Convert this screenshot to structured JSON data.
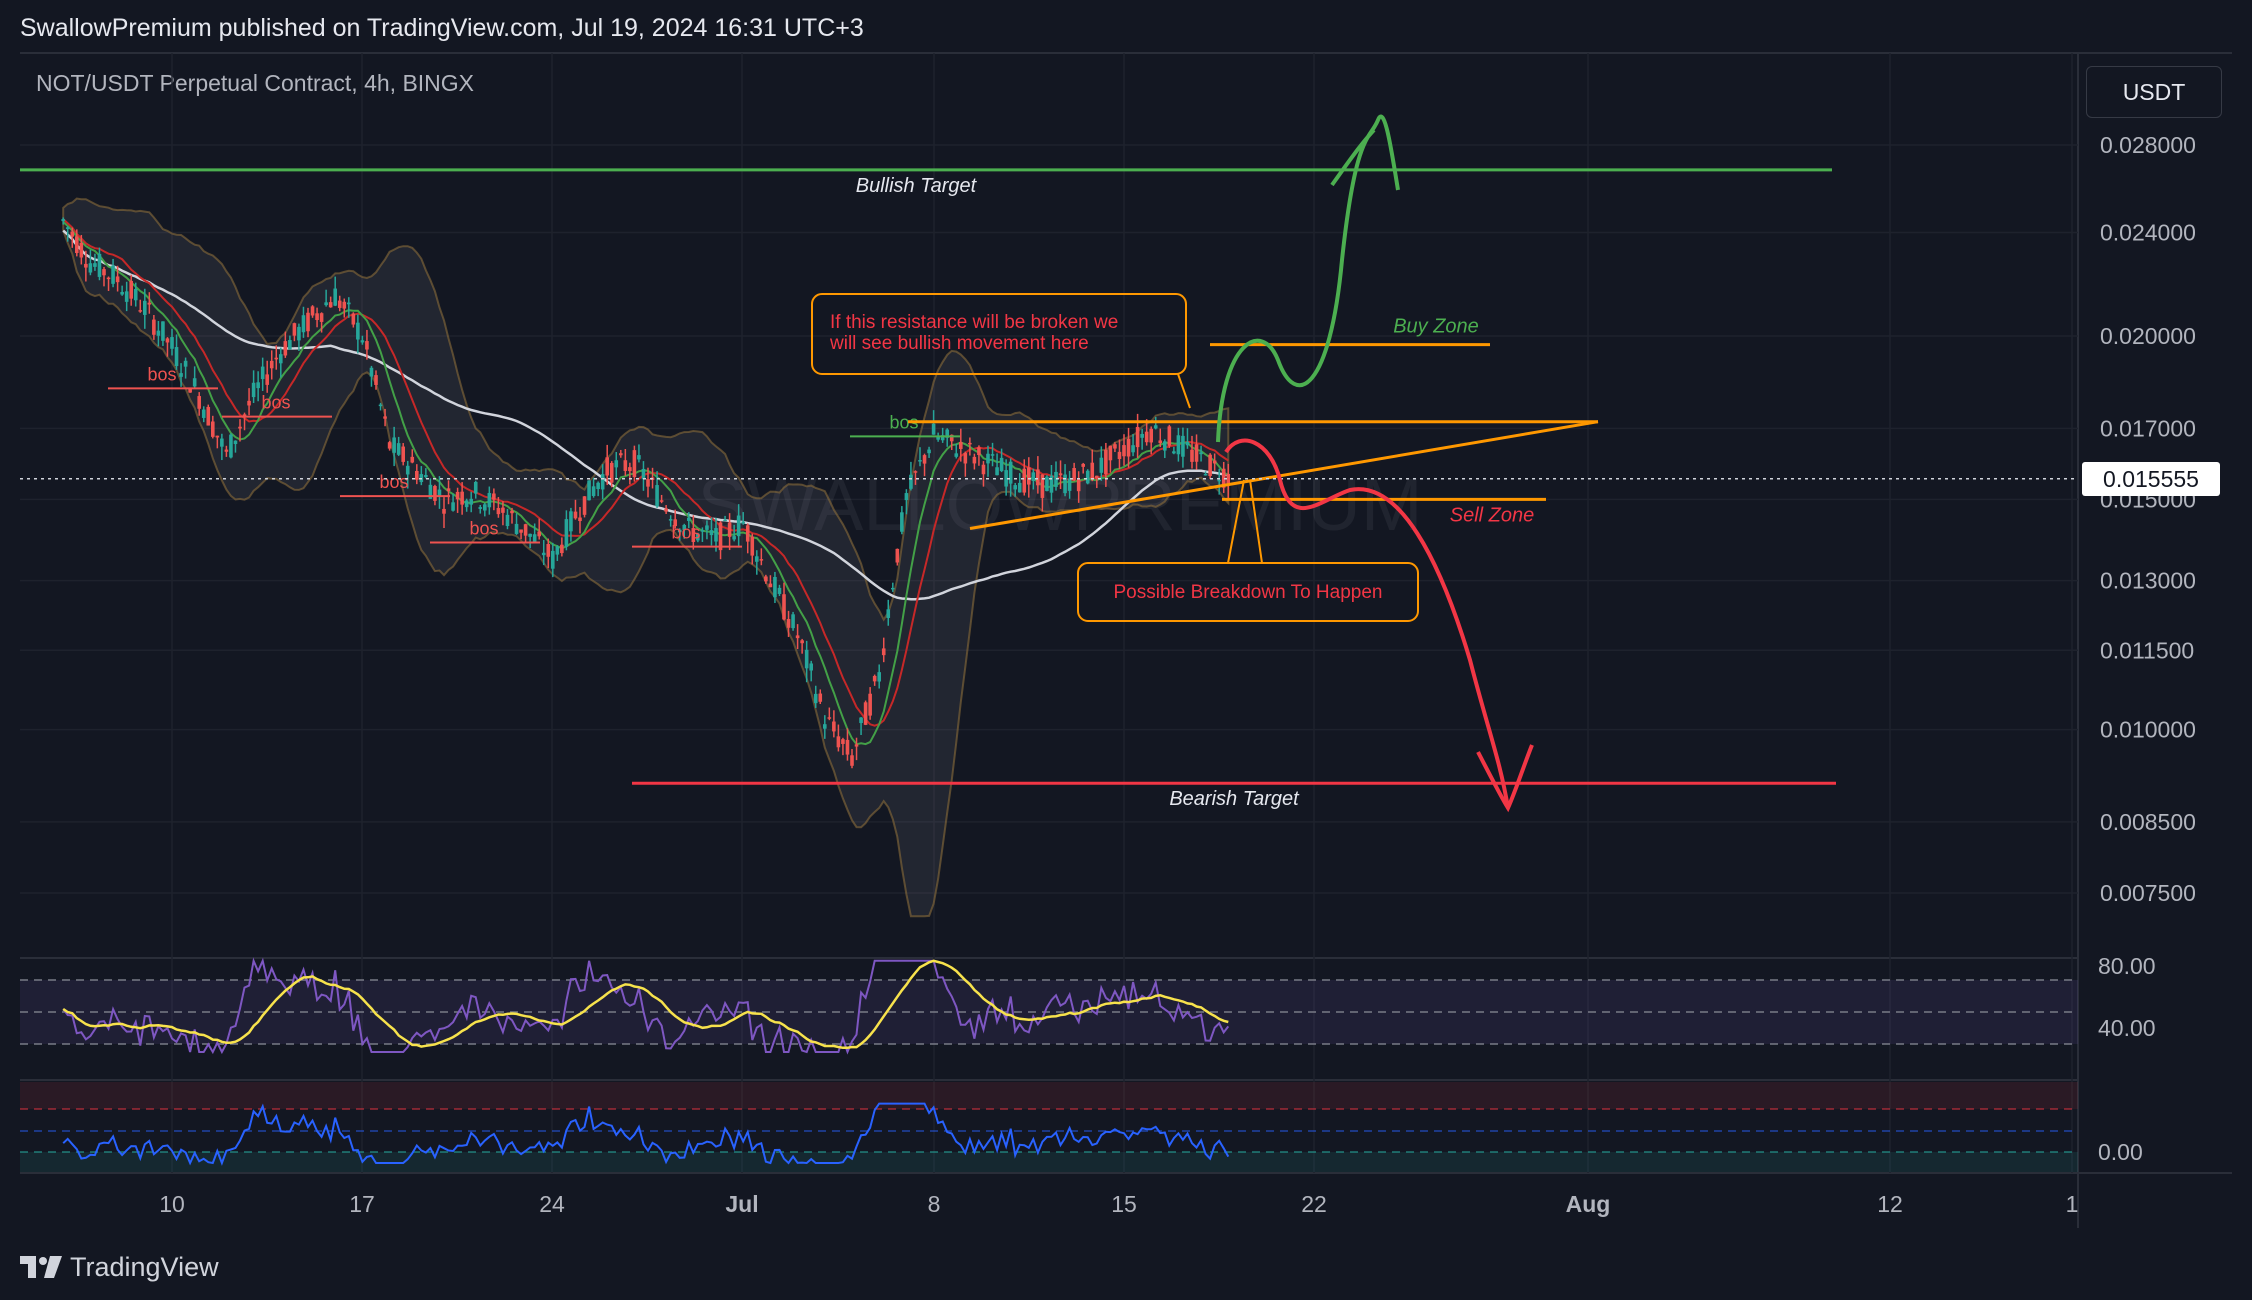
{
  "header": {
    "published": "SwallowPremium published on TradingView.com, Jul 19, 2024 16:31 UTC+3"
  },
  "symbol": {
    "title": "NOT/USDT Perpetual Contract, 4h, BINGX"
  },
  "currency_button": "USDT",
  "last_price": "0.015555",
  "watermark": "SWALLOWPREMIUM",
  "footer": {
    "brand": "TradingView"
  },
  "colors": {
    "background": "#131722",
    "bullish": "#4caf50",
    "bearish": "#f23645",
    "resistance": "#ff9800",
    "rsi": "#7e57c2",
    "ma": "#f7e24c",
    "osc": "#2962ff"
  },
  "annotations": {
    "bullish_target": "Bullish Target",
    "bearish_target": "Bearish Target",
    "buy_zone": "Buy Zone",
    "sell_zone": "Sell Zone",
    "resistance_note": "If this resistance will be broken we will see bullish movement here",
    "breakdown_note": "Possible Breakdown To Happen",
    "bos": "bos"
  },
  "chart_data": {
    "type": "line",
    "title": "NOT/USDT Perpetual Contract, 4h, BINGX",
    "scale": "log",
    "y_ticks": [
      "0.028000",
      "0.024000",
      "0.020000",
      "0.017000",
      "0.015000",
      "0.013000",
      "0.011500",
      "0.010000",
      "0.008500",
      "0.007500"
    ],
    "x_ticks": [
      "10",
      "17",
      "24",
      "Jul",
      "8",
      "15",
      "22",
      "Aug",
      "12",
      "1"
    ],
    "ylim": [
      0.0068,
      0.033
    ],
    "levels": {
      "bullish_target": 0.0268,
      "bearish_target": 0.0091,
      "buy_zone": 0.0197,
      "sell_zone": 0.015,
      "resistance": 0.0172,
      "current": 0.015555
    },
    "price_series": [
      {
        "date": "Jun 06",
        "value": 0.0245
      },
      {
        "date": "Jun 07",
        "value": 0.0228
      },
      {
        "date": "Jun 08",
        "value": 0.0221
      },
      {
        "date": "Jun 09",
        "value": 0.021
      },
      {
        "date": "Jun 10",
        "value": 0.0196
      },
      {
        "date": "Jun 11",
        "value": 0.018
      },
      {
        "date": "Jun 12",
        "value": 0.0162
      },
      {
        "date": "Jun 13",
        "value": 0.018
      },
      {
        "date": "Jun 14",
        "value": 0.0195
      },
      {
        "date": "Jun 15",
        "value": 0.0205
      },
      {
        "date": "Jun 16",
        "value": 0.0215
      },
      {
        "date": "Jun 17",
        "value": 0.02
      },
      {
        "date": "Jun 18",
        "value": 0.0165
      },
      {
        "date": "Jun 19",
        "value": 0.0158
      },
      {
        "date": "Jun 20",
        "value": 0.015
      },
      {
        "date": "Jun 21",
        "value": 0.0152
      },
      {
        "date": "Jun 22",
        "value": 0.0148
      },
      {
        "date": "Jun 23",
        "value": 0.0142
      },
      {
        "date": "Jun 24",
        "value": 0.0135
      },
      {
        "date": "Jun 25",
        "value": 0.0148
      },
      {
        "date": "Jun 26",
        "value": 0.0158
      },
      {
        "date": "Jun 27",
        "value": 0.016
      },
      {
        "date": "Jun 28",
        "value": 0.015
      },
      {
        "date": "Jun 29",
        "value": 0.0142
      },
      {
        "date": "Jun 30",
        "value": 0.014
      },
      {
        "date": "Jul 01",
        "value": 0.0144
      },
      {
        "date": "Jul 02",
        "value": 0.013
      },
      {
        "date": "Jul 03",
        "value": 0.0118
      },
      {
        "date": "Jul 04",
        "value": 0.0102
      },
      {
        "date": "Jul 05",
        "value": 0.0095
      },
      {
        "date": "Jul 06",
        "value": 0.011
      },
      {
        "date": "Jul 07",
        "value": 0.015
      },
      {
        "date": "Jul 08",
        "value": 0.0168
      },
      {
        "date": "Jul 09",
        "value": 0.0164
      },
      {
        "date": "Jul 10",
        "value": 0.016
      },
      {
        "date": "Jul 11",
        "value": 0.0156
      },
      {
        "date": "Jul 12",
        "value": 0.0154
      },
      {
        "date": "Jul 13",
        "value": 0.0155
      },
      {
        "date": "Jul 14",
        "value": 0.0158
      },
      {
        "date": "Jul 15",
        "value": 0.0164
      },
      {
        "date": "Jul 16",
        "value": 0.017
      },
      {
        "date": "Jul 17",
        "value": 0.0165
      },
      {
        "date": "Jul 18",
        "value": 0.016
      },
      {
        "date": "Jul 19",
        "value": 0.015555
      }
    ],
    "rsi_ticks": [
      "80.00",
      "40.00"
    ],
    "osc_ticks": [
      "0.00"
    ]
  }
}
